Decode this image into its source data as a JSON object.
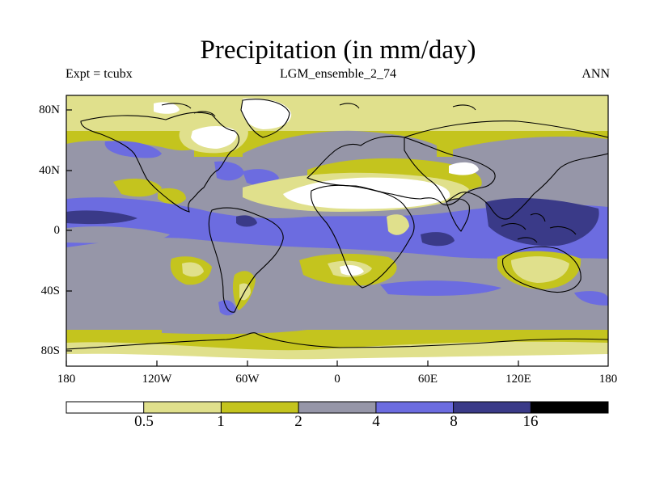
{
  "title": "Precipitation (in mm/day)",
  "subtitle_left": "Expt = tcubx",
  "subtitle_center": "LGM_ensemble_2_74",
  "subtitle_right": "ANN",
  "lat_labels": [
    "80N",
    "40N",
    "0",
    "40S",
    "80S"
  ],
  "lon_labels": [
    "180",
    "120W",
    "60W",
    "0",
    "60E",
    "120E",
    "180"
  ],
  "colorbar": {
    "colors": [
      "#ffffff",
      "#e0e08c",
      "#c4c41e",
      "#9696a8",
      "#6c6ce0",
      "#3a3a88",
      "#000000"
    ],
    "labels": [
      "0.5",
      "1",
      "2",
      "4",
      "8",
      "16"
    ]
  },
  "chart_data": {
    "type": "heatmap",
    "title": "Precipitation (in mm/day)",
    "variable": "Precipitation",
    "units": "mm/day",
    "experiment": "tcubx",
    "ensemble": "LGM_ensemble_2_74",
    "period": "ANN",
    "xlim": [
      -180,
      180
    ],
    "ylim": [
      -90,
      90
    ],
    "x_ticks": [
      "180",
      "120W",
      "60W",
      "0",
      "60E",
      "120E",
      "180"
    ],
    "y_ticks": [
      "80N",
      "40N",
      "0",
      "40S",
      "80S"
    ],
    "contour_levels": [
      0.5,
      1,
      2,
      4,
      8,
      16
    ]
  }
}
